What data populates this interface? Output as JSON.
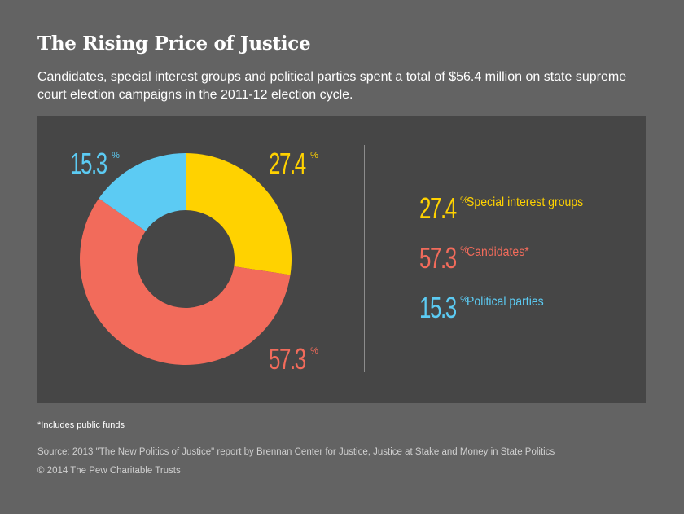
{
  "colors": {
    "special_interest": "#ffd200",
    "candidates": "#f26b5b",
    "political_parties": "#5ccbf3"
  },
  "header": {
    "title": "The Rising Price of Justice",
    "subtitle": "Candidates, special interest groups and political parties spent a total of $56.4 million on state supreme court election campaigns in the 2011-12 election cycle."
  },
  "chart_data": {
    "type": "pie",
    "donut": true,
    "title": "The Rising Price of Justice",
    "categories": [
      "Special interest groups",
      "Candidates*",
      "Political parties"
    ],
    "values": [
      27.4,
      57.3,
      15.3
    ],
    "value_labels": [
      "27.4",
      "57.3",
      "15.3"
    ],
    "unit": "%",
    "legend_position": "right"
  },
  "legend": {
    "items": [
      {
        "value": "27.4",
        "unit": "%",
        "label": "Special interest groups"
      },
      {
        "value": "57.3",
        "unit": "%",
        "label": "Candidates*"
      },
      {
        "value": "15.3",
        "unit": "%",
        "label": "Political parties"
      }
    ]
  },
  "footer": {
    "note": "*Includes public funds",
    "source": "Source: 2013 \"The New Politics of Justice\" report by Brennan Center for Justice, Justice at Stake and Money in State Politics",
    "copyright": "© 2014 The Pew Charitable Trusts"
  }
}
